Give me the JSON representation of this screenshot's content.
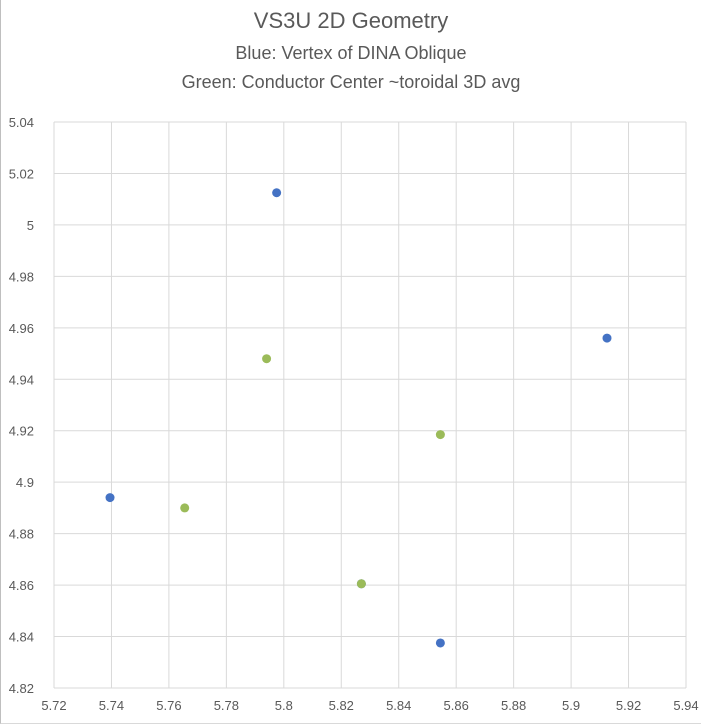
{
  "chart_data": {
    "type": "scatter",
    "title": "VS3U 2D Geometry",
    "subtitle_lines": [
      "Blue: Vertex of DINA Oblique",
      "Green: Conductor Center ~toroidal 3D avg"
    ],
    "xlabel": "",
    "ylabel": "",
    "xlim": [
      5.72,
      5.94
    ],
    "ylim": [
      4.82,
      5.04
    ],
    "x_ticks": [
      "5.72",
      "5.74",
      "5.76",
      "5.78",
      "5.8",
      "5.82",
      "5.84",
      "5.86",
      "5.88",
      "5.9",
      "5.92",
      "5.94"
    ],
    "y_ticks": [
      "5.04",
      "5.02",
      "5",
      "4.98",
      "4.96",
      "4.94",
      "4.92",
      "4.9",
      "4.88",
      "4.86",
      "4.84",
      "4.82"
    ],
    "grid": true,
    "series": [
      {
        "color": "#4472c4",
        "points": [
          [
            5.7975,
            5.0125
          ],
          [
            5.9125,
            4.956
          ],
          [
            5.7395,
            4.894
          ],
          [
            5.8545,
            4.8375
          ],
          [
            5.827,
            4.8605
          ]
        ]
      },
      {
        "color": "#9bbb59",
        "points": [
          [
            5.794,
            4.948
          ],
          [
            5.8545,
            4.9185
          ],
          [
            5.7655,
            4.89
          ],
          [
            5.827,
            4.8605
          ]
        ]
      }
    ]
  }
}
